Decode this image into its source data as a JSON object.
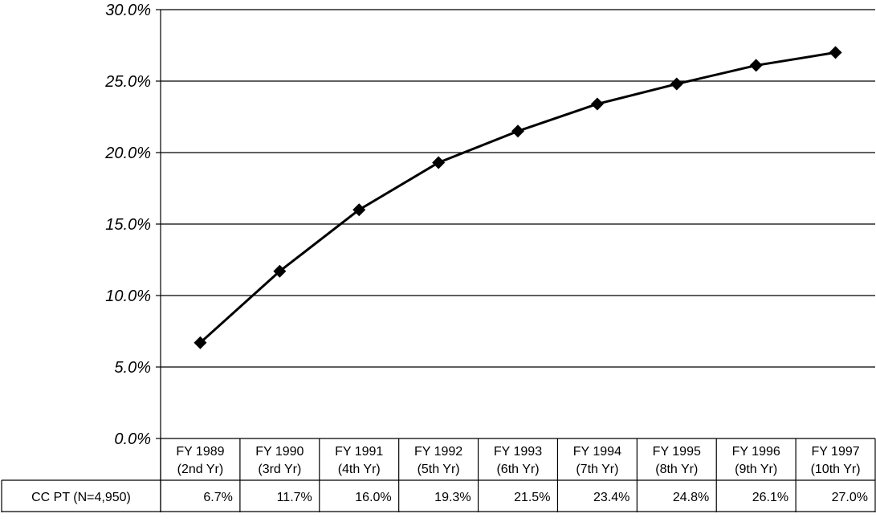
{
  "chart_data": {
    "type": "line",
    "categories": [
      [
        "FY 1989",
        "(2nd Yr)"
      ],
      [
        "FY 1990",
        "(3rd Yr)"
      ],
      [
        "FY 1991",
        "(4th Yr)"
      ],
      [
        "FY 1992",
        "(5th Yr)"
      ],
      [
        "FY 1993",
        "(6th Yr)"
      ],
      [
        "FY 1994",
        "(7th Yr)"
      ],
      [
        "FY 1995",
        "(8th Yr)"
      ],
      [
        "FY 1996",
        "(9th Yr)"
      ],
      [
        "FY 1997",
        "(10th Yr)"
      ]
    ],
    "series": [
      {
        "name": "CC PT (N=4,950)",
        "values": [
          6.7,
          11.7,
          16.0,
          19.3,
          21.5,
          23.4,
          24.8,
          26.1,
          27.0
        ],
        "labels": [
          "6.7%",
          "11.7%",
          "16.0%",
          "19.3%",
          "21.5%",
          "23.4%",
          "24.8%",
          "26.1%",
          "27.0%"
        ]
      }
    ],
    "yticks": [
      "0.0%",
      "5.0%",
      "10.0%",
      "15.0%",
      "20.0%",
      "25.0%",
      "30.0%"
    ],
    "ylim": [
      0,
      30
    ],
    "grid": true,
    "marker": "diamond",
    "line_color": "#000000"
  }
}
